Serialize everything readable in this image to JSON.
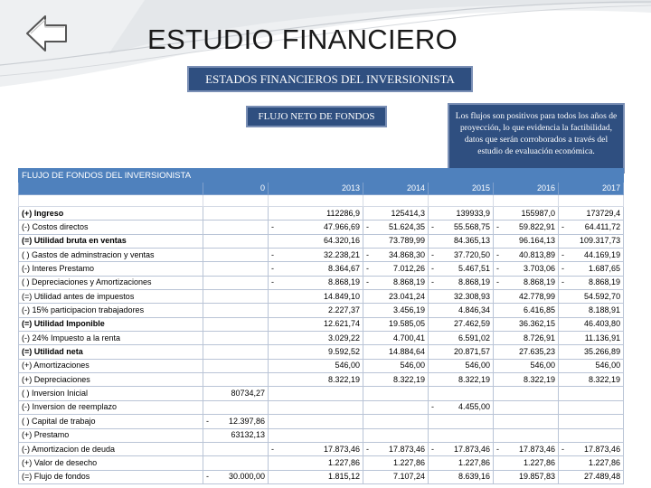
{
  "page": {
    "title": "ESTUDIO FINANCIERO",
    "section_banner": "ESTADOS FINANCIEROS DEL INVERSIONISTA",
    "flow_label": "FLUJO NETO DE FONDOS",
    "note": "Los flujos son positivos para todos los años de proyección, lo que evidencia la factibilidad, datos que serán corroborados a través del estudio de evaluación económica."
  },
  "table": {
    "title": "FLUJO DE FONDOS  DEL INVERSIONISTA",
    "years": [
      "0",
      "2013",
      "2014",
      "2015",
      "2016",
      "2017"
    ],
    "rows": [
      {
        "label": "(+) Ingreso",
        "bold": true,
        "cells": [
          {
            "v": ""
          },
          {
            "v": "112286,9"
          },
          {
            "v": "125414,3"
          },
          {
            "v": "139933,9"
          },
          {
            "v": "155987,0"
          },
          {
            "v": "173729,4"
          }
        ]
      },
      {
        "label": "(-) Costos directos",
        "bold": false,
        "cells": [
          {
            "v": ""
          },
          {
            "v": "47.966,69",
            "neg": true
          },
          {
            "v": "51.624,35",
            "neg": true
          },
          {
            "v": "55.568,75",
            "neg": true
          },
          {
            "v": "59.822,91",
            "neg": true
          },
          {
            "v": "64.411,72",
            "neg": true
          }
        ]
      },
      {
        "label": "(=) Utilidad bruta en ventas",
        "bold": true,
        "cells": [
          {
            "v": ""
          },
          {
            "v": "64.320,16"
          },
          {
            "v": "73.789,99"
          },
          {
            "v": "84.365,13"
          },
          {
            "v": "96.164,13"
          },
          {
            "v": "109.317,73"
          }
        ]
      },
      {
        "label": "( ) Gastos de adminstracion y ventas",
        "bold": false,
        "cells": [
          {
            "v": ""
          },
          {
            "v": "32.238,21",
            "neg": true
          },
          {
            "v": "34.868,30",
            "neg": true
          },
          {
            "v": "37.720,50",
            "neg": true
          },
          {
            "v": "40.813,89",
            "neg": true
          },
          {
            "v": "44.169,19",
            "neg": true
          }
        ]
      },
      {
        "label": "(-) Interes Prestamo",
        "bold": false,
        "cells": [
          {
            "v": ""
          },
          {
            "v": "8.364,67",
            "neg": true
          },
          {
            "v": "7.012,26",
            "neg": true
          },
          {
            "v": "5.467,51",
            "neg": true
          },
          {
            "v": "3.703,06",
            "neg": true
          },
          {
            "v": "1.687,65",
            "neg": true
          }
        ]
      },
      {
        "label": "( ) Depreciaciones y Amortizaciones",
        "bold": false,
        "cells": [
          {
            "v": ""
          },
          {
            "v": "8.868,19",
            "neg": true
          },
          {
            "v": "8.868,19",
            "neg": true
          },
          {
            "v": "8.868,19",
            "neg": true
          },
          {
            "v": "8.868,19",
            "neg": true
          },
          {
            "v": "8.868,19",
            "neg": true
          }
        ]
      },
      {
        "label": "(=) Utilidad antes de impuestos",
        "bold": false,
        "cells": [
          {
            "v": ""
          },
          {
            "v": "14.849,10"
          },
          {
            "v": "23.041,24"
          },
          {
            "v": "32.308,93"
          },
          {
            "v": "42.778,99"
          },
          {
            "v": "54.592,70"
          }
        ]
      },
      {
        "label": "(-) 15% participacion trabajadores",
        "bold": false,
        "cells": [
          {
            "v": ""
          },
          {
            "v": "2.227,37"
          },
          {
            "v": "3.456,19"
          },
          {
            "v": "4.846,34"
          },
          {
            "v": "6.416,85"
          },
          {
            "v": "8.188,91"
          }
        ]
      },
      {
        "label": "(=) Utilidad Imponible",
        "bold": true,
        "cells": [
          {
            "v": ""
          },
          {
            "v": "12.621,74"
          },
          {
            "v": "19.585,05"
          },
          {
            "v": "27.462,59"
          },
          {
            "v": "36.362,15"
          },
          {
            "v": "46.403,80"
          }
        ]
      },
      {
        "label": "(-) 24% Impuesto a la renta",
        "bold": false,
        "cells": [
          {
            "v": ""
          },
          {
            "v": "3.029,22"
          },
          {
            "v": "4.700,41"
          },
          {
            "v": "6.591,02"
          },
          {
            "v": "8.726,91"
          },
          {
            "v": "11.136,91"
          }
        ]
      },
      {
        "label": "(=) Utilidad neta",
        "bold": true,
        "cells": [
          {
            "v": ""
          },
          {
            "v": "9.592,52"
          },
          {
            "v": "14.884,64"
          },
          {
            "v": "20.871,57"
          },
          {
            "v": "27.635,23"
          },
          {
            "v": "35.266,89"
          }
        ]
      },
      {
        "label": "(+) Amortizaciones",
        "bold": false,
        "cells": [
          {
            "v": ""
          },
          {
            "v": "546,00"
          },
          {
            "v": "546,00"
          },
          {
            "v": "546,00"
          },
          {
            "v": "546,00"
          },
          {
            "v": "546,00"
          }
        ]
      },
      {
        "label": "(+) Depreciaciones",
        "bold": false,
        "cells": [
          {
            "v": ""
          },
          {
            "v": "8.322,19"
          },
          {
            "v": "8.322,19"
          },
          {
            "v": "8.322,19"
          },
          {
            "v": "8.322,19"
          },
          {
            "v": "8.322,19"
          }
        ]
      },
      {
        "label": "( ) Inversion Inicial",
        "bold": false,
        "cells": [
          {
            "v": "80734,27"
          },
          {
            "v": ""
          },
          {
            "v": ""
          },
          {
            "v": ""
          },
          {
            "v": ""
          },
          {
            "v": ""
          }
        ]
      },
      {
        "label": "(-) Inversion de reemplazo",
        "bold": false,
        "cells": [
          {
            "v": ""
          },
          {
            "v": ""
          },
          {
            "v": ""
          },
          {
            "v": "4.455,00",
            "neg": true
          },
          {
            "v": ""
          },
          {
            "v": ""
          }
        ]
      },
      {
        "label": "( ) Capital de trabajo",
        "bold": false,
        "cells": [
          {
            "v": "12.397,86",
            "neg": true
          },
          {
            "v": ""
          },
          {
            "v": ""
          },
          {
            "v": ""
          },
          {
            "v": ""
          },
          {
            "v": ""
          }
        ]
      },
      {
        "label": "(+) Prestamo",
        "bold": false,
        "cells": [
          {
            "v": "63132,13"
          },
          {
            "v": ""
          },
          {
            "v": ""
          },
          {
            "v": ""
          },
          {
            "v": ""
          },
          {
            "v": ""
          }
        ]
      },
      {
        "label": "(-) Amortizacion de deuda",
        "bold": false,
        "cells": [
          {
            "v": ""
          },
          {
            "v": "17.873,46",
            "neg": true
          },
          {
            "v": "17.873,46",
            "neg": true
          },
          {
            "v": "17.873,46",
            "neg": true
          },
          {
            "v": "17.873,46",
            "neg": true
          },
          {
            "v": "17.873,46",
            "neg": true
          }
        ]
      },
      {
        "label": "(+) Valor de desecho",
        "bold": false,
        "cells": [
          {
            "v": ""
          },
          {
            "v": "1.227,86"
          },
          {
            "v": "1.227,86"
          },
          {
            "v": "1.227,86"
          },
          {
            "v": "1.227,86"
          },
          {
            "v": "1.227,86"
          }
        ]
      },
      {
        "label": "(=) Flujo de fondos",
        "bold": false,
        "cells": [
          {
            "v": "30.000,00",
            "neg": true
          },
          {
            "v": "1.815,12"
          },
          {
            "v": "7.107,24"
          },
          {
            "v": "8.639,16"
          },
          {
            "v": "19.857,83"
          },
          {
            "v": "27.489,48"
          }
        ]
      }
    ]
  },
  "colors": {
    "banner_bg": "#2f4f80",
    "table_header_bg": "#4f81bd",
    "grid_line": "#b9c4d6"
  },
  "icons": {
    "back": "back-arrow-icon"
  }
}
